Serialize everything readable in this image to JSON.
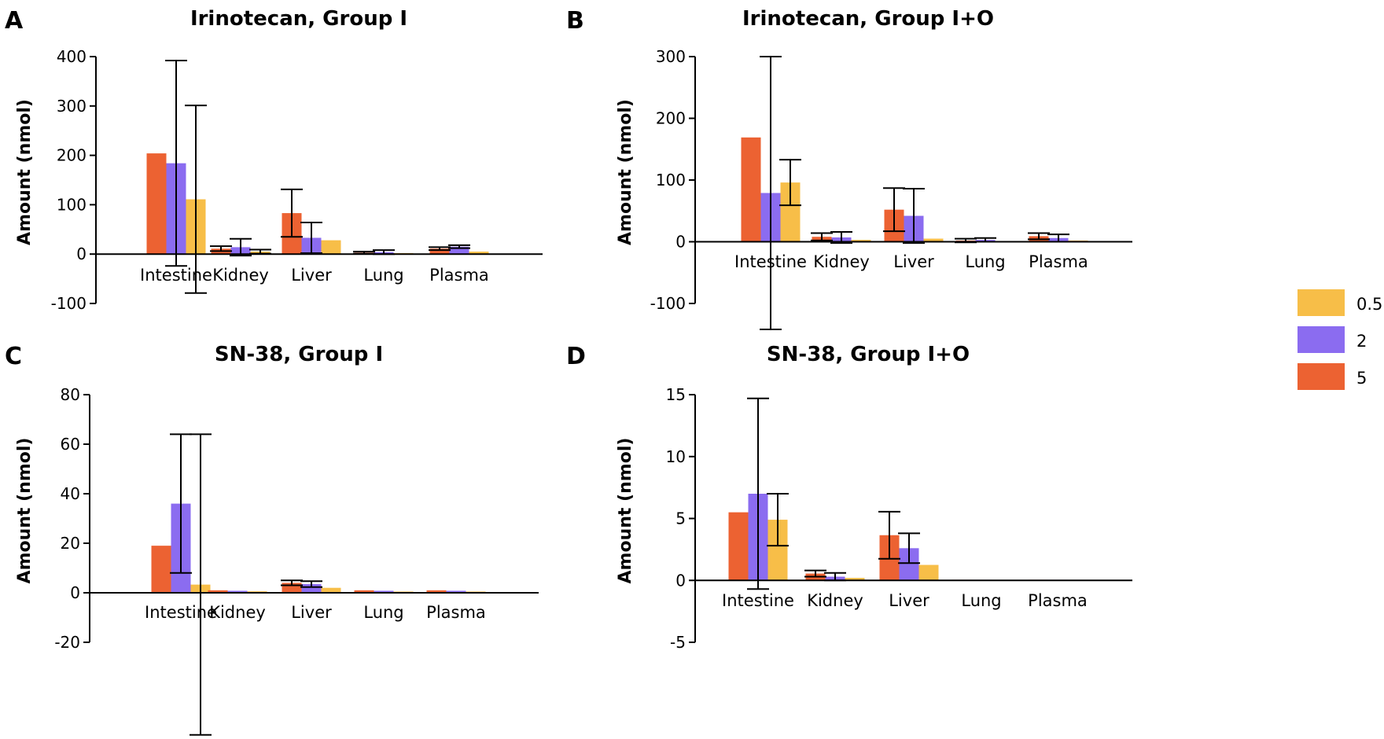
{
  "chart_data": [
    {
      "panel": "A",
      "type": "bar",
      "title": "Irinotecan, Group I",
      "ylabel": "Amount  (nmol)",
      "xlabel": "",
      "categories": [
        "Intestine",
        "Kidney",
        "Liver",
        "Lung",
        "Plasma"
      ],
      "ylim": [
        -100,
        400
      ],
      "yticks": [
        -100,
        0,
        100,
        200,
        300,
        400
      ],
      "series": [
        {
          "name": "5",
          "values": [
            204,
            11,
            83,
            3,
            11
          ],
          "errors": [
            null,
            5,
            48,
            2,
            3
          ]
        },
        {
          "name": "2",
          "values": [
            184,
            14,
            33,
            4,
            15
          ],
          "errors": [
            208,
            17,
            31,
            4,
            3
          ]
        },
        {
          "name": "0.5",
          "values": [
            111,
            5,
            28,
            2,
            5
          ],
          "errors": [
            190,
            4,
            null,
            null,
            null
          ]
        }
      ]
    },
    {
      "panel": "B",
      "type": "bar",
      "title": "Irinotecan, Group I+O",
      "ylabel": "Amount  (nmol)",
      "xlabel": "",
      "categories": [
        "Intestine",
        "Kidney",
        "Liver",
        "Lung",
        "Plasma"
      ],
      "ylim": [
        -100,
        300
      ],
      "yticks": [
        -100,
        0,
        100,
        200,
        300
      ],
      "series": [
        {
          "name": "5",
          "values": [
            169,
            8,
            52,
            2,
            9
          ],
          "errors": [
            null,
            6,
            35,
            3,
            5
          ]
        },
        {
          "name": "2",
          "values": [
            79,
            7,
            42,
            3,
            6
          ],
          "errors": [
            221,
            9,
            44,
            3,
            6
          ]
        },
        {
          "name": "0.5",
          "values": [
            96,
            3,
            5,
            1,
            2
          ],
          "errors": [
            37,
            null,
            null,
            null,
            null
          ]
        }
      ]
    },
    {
      "panel": "C",
      "type": "bar",
      "title": "SN-38, Group I",
      "ylabel": "Amount  (nmol)",
      "xlabel": "",
      "categories": [
        "Intestine",
        "Kidney",
        "Liver",
        "Lung",
        "Plasma"
      ],
      "ylim": [
        -20,
        80
      ],
      "yticks": [
        -20,
        0,
        20,
        40,
        60,
        80
      ],
      "series": [
        {
          "name": "5",
          "values": [
            19,
            1,
            4,
            1,
            1
          ],
          "errors": [
            null,
            null,
            1,
            null,
            null
          ]
        },
        {
          "name": "2",
          "values": [
            36,
            0.8,
            3.5,
            0.8,
            0.8
          ],
          "errors": [
            28,
            null,
            1.2,
            null,
            null
          ]
        },
        {
          "name": "0.5",
          "values": [
            3.3,
            0.6,
            2,
            0.5,
            0.5
          ],
          "errors": [
            60.7,
            null,
            null,
            null,
            null
          ]
        }
      ]
    },
    {
      "panel": "D",
      "type": "bar",
      "title": "SN-38, Group I+O",
      "ylabel": "Amount  (nmol)",
      "xlabel": "",
      "categories": [
        "Intestine",
        "Kidney",
        "Liver",
        "Lung",
        "Plasma"
      ],
      "ylim": [
        -5,
        15
      ],
      "yticks": [
        -5,
        0,
        5,
        10,
        15
      ],
      "series": [
        {
          "name": "5",
          "values": [
            5.5,
            0.55,
            3.65,
            0.05,
            0.05
          ],
          "errors": [
            null,
            0.25,
            1.9,
            null,
            null
          ]
        },
        {
          "name": "2",
          "values": [
            7,
            0.3,
            2.6,
            0.05,
            0.05
          ],
          "errors": [
            7.7,
            0.3,
            1.2,
            null,
            null
          ]
        },
        {
          "name": "0.5",
          "values": [
            4.9,
            0.2,
            1.25,
            0.02,
            0.02
          ],
          "errors": [
            2.1,
            null,
            null,
            null,
            null
          ]
        }
      ]
    }
  ],
  "legend": {
    "placement": "right",
    "items": [
      {
        "label": "0.5",
        "color": "#F7BE48"
      },
      {
        "label": "2",
        "color": "#8B6CF0"
      },
      {
        "label": "5",
        "color": "#EC6232"
      }
    ]
  },
  "colors": {
    "5": "#EC6232",
    "2": "#8B6CF0",
    "0.5": "#F7BE48"
  }
}
